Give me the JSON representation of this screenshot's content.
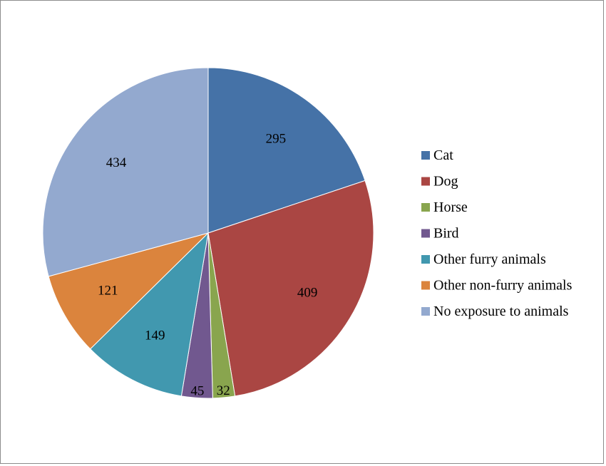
{
  "chart_data": {
    "type": "pie",
    "title": "",
    "legend_position": "right",
    "start_angle_deg": 0,
    "direction": "clockwise",
    "slices": [
      {
        "name": "Cat",
        "value": 295,
        "label": "295",
        "color": "#4572A7"
      },
      {
        "name": "Dog",
        "value": 409,
        "label": "409",
        "color": "#AA4643"
      },
      {
        "name": "Horse",
        "value": 32,
        "label": "32",
        "color": "#89A54E"
      },
      {
        "name": "Bird",
        "value": 45,
        "label": "45",
        "color": "#71588F"
      },
      {
        "name": "Other furry animals",
        "value": 149,
        "label": "149",
        "color": "#4198AF"
      },
      {
        "name": "Other non-furry animals",
        "value": 121,
        "label": "121",
        "color": "#DB843D"
      },
      {
        "name": "No exposure to animals",
        "value": 434,
        "label": "434",
        "color": "#93A9CF"
      }
    ]
  }
}
